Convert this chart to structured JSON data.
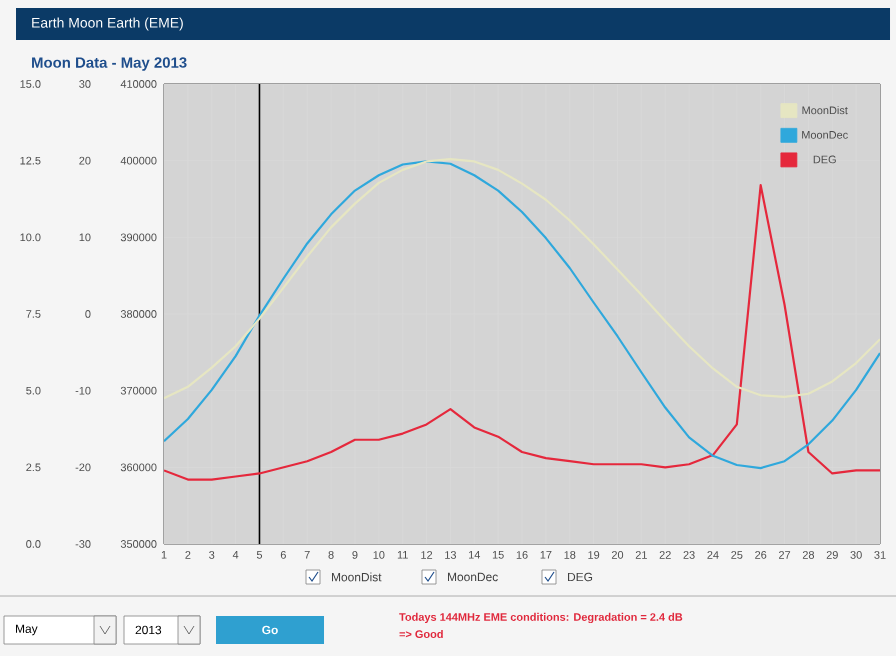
{
  "chart_data": {
    "type": "line",
    "title": "Earth Moon Earth (EME)",
    "subtitle": "Moon Data - May 2013",
    "x": [
      1,
      2,
      3,
      4,
      5,
      6,
      7,
      8,
      9,
      10,
      11,
      12,
      13,
      14,
      15,
      16,
      17,
      18,
      19,
      20,
      21,
      22,
      23,
      24,
      25,
      26,
      27,
      28,
      29,
      30,
      31
    ],
    "xlim": [
      1,
      31
    ],
    "xticks": [
      1,
      2,
      3,
      4,
      5,
      6,
      7,
      8,
      9,
      10,
      11,
      12,
      13,
      14,
      15,
      16,
      17,
      18,
      19,
      20,
      21,
      22,
      23,
      24,
      25,
      26,
      27,
      28,
      29,
      30,
      31
    ],
    "ylim": [
      0,
      15
    ],
    "yticks": [
      {
        "value": 0,
        "label": "0.0"
      },
      {
        "value": 2.5,
        "label": "2.5"
      },
      {
        "value": 5,
        "label": "5.0"
      },
      {
        "value": 7.5,
        "label": "7.5"
      },
      {
        "value": 10,
        "label": "10.0"
      },
      {
        "value": 12.5,
        "label": "12.5"
      },
      {
        "value": 15,
        "label": "15.0"
      }
    ],
    "y2lim": [
      -30,
      30
    ],
    "y2ticks": [
      -30,
      -20,
      -10,
      0,
      10,
      20,
      30
    ],
    "y3lim": [
      350000,
      410000
    ],
    "y3ticks": [
      350000,
      360000,
      370000,
      380000,
      390000,
      400000,
      410000
    ],
    "series": [
      {
        "name": "MoonDist",
        "color": "#e6e6c2",
        "axis": "y3",
        "values": [
          369000,
          370500,
          373000,
          375800,
          379400,
          383400,
          387500,
          391300,
          394400,
          397100,
          398800,
          399900,
          400200,
          399900,
          398800,
          397000,
          394900,
          392200,
          389100,
          385800,
          382500,
          379100,
          375800,
          372900,
          370500,
          369400,
          369200,
          369600,
          371200,
          373600,
          376700
        ]
      },
      {
        "name": "MoonDec",
        "color": "#2fa8dc",
        "axis": "y2",
        "values": [
          -16.6,
          -13.7,
          -9.9,
          -5.5,
          -0.2,
          4.6,
          9.2,
          13.0,
          16.1,
          18.1,
          19.5,
          19.9,
          19.6,
          18.1,
          16.1,
          13.3,
          9.9,
          6.0,
          1.5,
          -2.9,
          -7.6,
          -12.2,
          -16.1,
          -18.5,
          -19.7,
          -20.1,
          -19.2,
          -17.0,
          -13.9,
          -9.9,
          -5.1
        ]
      },
      {
        "name": "DEG",
        "color": "#e5283c",
        "axis": "y",
        "values": [
          2.4,
          2.1,
          2.1,
          2.2,
          2.3,
          2.5,
          2.7,
          3.0,
          3.4,
          3.4,
          3.6,
          3.9,
          4.4,
          3.8,
          3.5,
          3.0,
          2.8,
          2.7,
          2.6,
          2.6,
          2.6,
          2.5,
          2.6,
          2.9,
          3.9,
          11.7,
          7.8,
          3.0,
          2.3,
          2.4,
          2.4
        ]
      }
    ],
    "ref_lines": [
      {
        "axis": "x",
        "value": 5,
        "color": "#000000"
      }
    ],
    "grid": true,
    "legend": "top right",
    "marker": "none",
    "line_style": "solid",
    "annotations": [
      "MoonDist",
      "MoonDec",
      "DEG",
      "May",
      "2013",
      "Go",
      "Todays 144MHz EME conditions: Degradation = 2.4 dB",
      "=> Good"
    ]
  }
}
